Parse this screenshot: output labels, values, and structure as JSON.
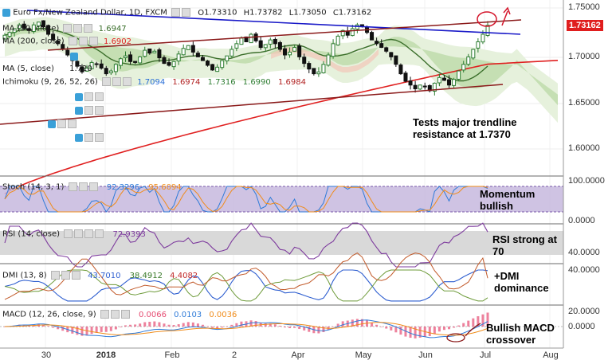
{
  "header": {
    "symbol": "Euro Fx/New Zealand Dollar, 1D, FXCM",
    "o_label": "O",
    "o": "1.73310",
    "h_label": "H",
    "h": "1.73782",
    "l_label": "L",
    "l": "1.73050",
    "c_label": "C",
    "c": "1.73162"
  },
  "legends": {
    "ma50": {
      "label": "MA (50, close)",
      "value": "1.6947"
    },
    "ma200": {
      "label": "MA (200, close)",
      "value": "1.6902"
    },
    "ma5": {
      "label": "MA (5, close)",
      "value": "1.720"
    },
    "ichimoku": {
      "label": "Ichimoku (9, 26, 52, 26)",
      "v1": "1.7094",
      "v2": "1.6974",
      "v3": "1.7316",
      "v4": "1.6990",
      "v5": "1.6984"
    },
    "stoch": {
      "label": "Stoch (14, 3, 1)",
      "k": "92.3296",
      "d": "95.6094"
    },
    "rsi": {
      "label": "RSI (14, close)",
      "value": "72.9393"
    },
    "dmi": {
      "label": "DMI (13, 8)",
      "plus": "43.7010",
      "minus": "38.4912",
      "adx": "4.4082"
    },
    "macd": {
      "label": "MACD (12, 26, close, 9)",
      "hist": "0.0066",
      "macd": "0.0103",
      "signal": "0.0036"
    }
  },
  "annotations": {
    "trend": [
      "Tests major trendline",
      "resistance at 1.7370"
    ],
    "stoch": [
      "Momentum",
      "bullish"
    ],
    "rsi": [
      "RSI strong at",
      "70"
    ],
    "dmi": [
      "+DMI",
      "dominance"
    ],
    "macd": [
      "Bullish MACD",
      "crossover"
    ]
  },
  "price_tag": "1.73162",
  "colors": {
    "up": "#2e7d32",
    "down": "#111111",
    "trend_blue": "#1a1ac8",
    "trend_red": "#8b1a1a",
    "ma200": "#e02020",
    "ma50": "#3a6e2a",
    "cloud": "#c5e0b4",
    "pane_band": "#c7b8de",
    "rsi_band": "#d6d6d6",
    "tag": "#e01e1e",
    "ichimoku_blue": "#2a6fd8",
    "stoch_orange": "#f08c1a",
    "macd_hist": "#e64c72"
  },
  "chart_data": [
    {
      "type": "candlestick",
      "title": "Euro Fx/New Zealand Dollar, 1D, FXCM",
      "x_tick_labels": [
        "30",
        "2018",
        "Feb",
        "2",
        "Apr",
        "May",
        "Jun",
        "Jul",
        "Aug"
      ],
      "y_tick_labels": [
        "1.75000",
        "1.70000",
        "1.65000",
        "1.60000"
      ],
      "ylim": [
        1.575,
        1.758
      ],
      "last": {
        "open": 1.7331,
        "high": 1.73782,
        "low": 1.7305,
        "close": 1.73162
      },
      "series": [
        {
          "name": "MA (50, close)",
          "last": 1.6947
        },
        {
          "name": "MA (200, close)",
          "last": 1.6902
        },
        {
          "name": "Ichimoku (9, 26, 52, 26)",
          "values": [
            1.7094,
            1.6974,
            1.7316,
            1.699,
            1.6984
          ]
        }
      ],
      "close_path": [
        1.721,
        1.724,
        1.728,
        1.732,
        1.728,
        1.726,
        1.732,
        1.735,
        1.73,
        1.722,
        1.716,
        1.712,
        1.706,
        1.7,
        1.694,
        1.688,
        1.682,
        1.686,
        1.692,
        1.69,
        1.686,
        1.68,
        1.683,
        1.69,
        1.696,
        1.699,
        1.693,
        1.692,
        1.698,
        1.705,
        1.702,
        1.704,
        1.697,
        1.691,
        1.689,
        1.693,
        1.701,
        1.707,
        1.71,
        1.703,
        1.698,
        1.694,
        1.689,
        1.684,
        1.687,
        1.694,
        1.699,
        1.706,
        1.712,
        1.718,
        1.714,
        1.722,
        1.715,
        1.708,
        1.711,
        1.716,
        1.712,
        1.706,
        1.7,
        1.703,
        1.708,
        1.698,
        1.691,
        1.685,
        1.68,
        1.682,
        1.69,
        1.7,
        1.712,
        1.72,
        1.726,
        1.721,
        1.728,
        1.732,
        1.73,
        1.724,
        1.716,
        1.712,
        1.708,
        1.704,
        1.698,
        1.69,
        1.68,
        1.672,
        1.668,
        1.664,
        1.668,
        1.666,
        1.662,
        1.67,
        1.676,
        1.673,
        1.668,
        1.674,
        1.683,
        1.69,
        1.698,
        1.706,
        1.714,
        1.722,
        1.7316
      ],
      "x_range_labels": [
        "Dec 2017",
        "Jul 2018"
      ]
    },
    {
      "type": "line",
      "title": "Stoch (14, 3, 1)",
      "series": [
        {
          "name": "%K",
          "last": 92.3296
        },
        {
          "name": "%D",
          "last": 95.6094
        }
      ],
      "y_tick_labels": [
        "100.0000",
        "0.0000"
      ],
      "ylim": [
        0,
        100
      ]
    },
    {
      "type": "line",
      "title": "RSI (14, close)",
      "series": [
        {
          "name": "RSI",
          "last": 72.9393
        }
      ],
      "y_tick_labels": [
        "40.0000"
      ],
      "ylim": [
        20,
        85
      ]
    },
    {
      "type": "line",
      "title": "DMI (13, 8)",
      "series": [
        {
          "name": "+DI",
          "last": 43.701
        },
        {
          "name": "-DI",
          "last": 38.4912
        },
        {
          "name": "ADX",
          "last": 4.4082
        }
      ],
      "y_tick_labels": [
        "40.0000",
        "20.0000"
      ],
      "ylim": [
        5,
        48
      ]
    },
    {
      "type": "bar",
      "title": "MACD (12, 26, close, 9)",
      "series": [
        {
          "name": "Histogram",
          "last": 0.0066
        },
        {
          "name": "MACD",
          "last": 0.0103
        },
        {
          "name": "Signal",
          "last": 0.0036
        }
      ],
      "y_tick_labels": [
        "0.0000"
      ],
      "ylim": [
        -0.02,
        0.02
      ]
    }
  ]
}
